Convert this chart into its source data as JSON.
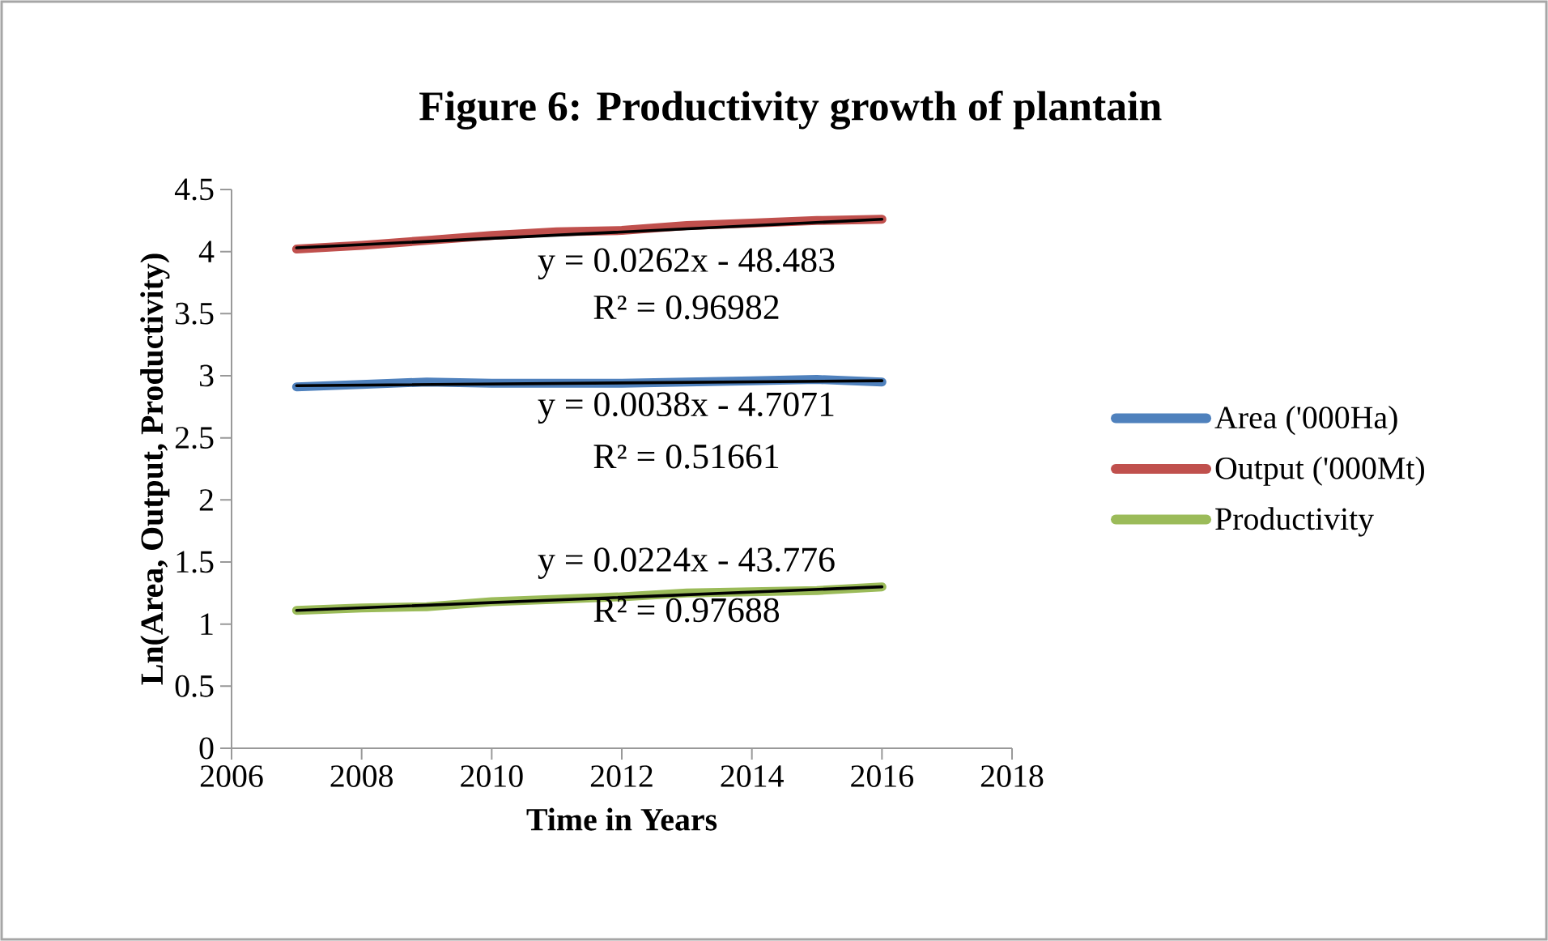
{
  "chart_data": {
    "type": "line",
    "title": "Figure 6: Productivity growth of plantain",
    "xlabel": "Time in Years",
    "ylabel": "Ln(Area, Output, Productivity)",
    "x": [
      2007,
      2008,
      2009,
      2010,
      2011,
      2012,
      2013,
      2014,
      2015,
      2016
    ],
    "series": [
      {
        "name": "Area ('000Ha)",
        "color": "#4f81bd",
        "values": [
          2.91,
          2.93,
          2.95,
          2.94,
          2.94,
          2.94,
          2.95,
          2.96,
          2.97,
          2.95
        ]
      },
      {
        "name": "Output ('000Mt)",
        "color": "#c0504d",
        "values": [
          4.02,
          4.05,
          4.09,
          4.13,
          4.16,
          4.17,
          4.21,
          4.23,
          4.25,
          4.26
        ]
      },
      {
        "name": "Productivity",
        "color": "#9bbb59",
        "values": [
          1.11,
          1.13,
          1.14,
          1.18,
          1.2,
          1.22,
          1.25,
          1.26,
          1.27,
          1.3
        ]
      },
      {
        "type": "line",
        "color": "#000000",
        "values": [
          2.92,
          null,
          null,
          null,
          null,
          null,
          null,
          null,
          null,
          2.96
        ]
      },
      {
        "type": "line",
        "color": "#000000",
        "values": [
          4.03,
          null,
          null,
          null,
          null,
          null,
          null,
          null,
          null,
          4.26
        ]
      },
      {
        "type": "line",
        "color": "#000000",
        "values": [
          1.11,
          null,
          null,
          null,
          null,
          null,
          null,
          null,
          null,
          1.3
        ]
      }
    ],
    "xlim": [
      2006,
      2018
    ],
    "xticks": [
      2006,
      2008,
      2010,
      2012,
      2014,
      2016,
      2018
    ],
    "ylim": [
      0,
      4.5
    ],
    "yticks": [
      0,
      0.5,
      1,
      1.5,
      2,
      2.5,
      3,
      3.5,
      4,
      4.5
    ],
    "legend": "right",
    "grid": false,
    "annotations": [
      "y = 0.0262x - 48.483",
      "R² = 0.96982",
      "y = 0.0038x - 4.7071",
      "R² = 0.51661",
      "y = 0.0224x - 43.776",
      "R² = 0.97688"
    ]
  }
}
